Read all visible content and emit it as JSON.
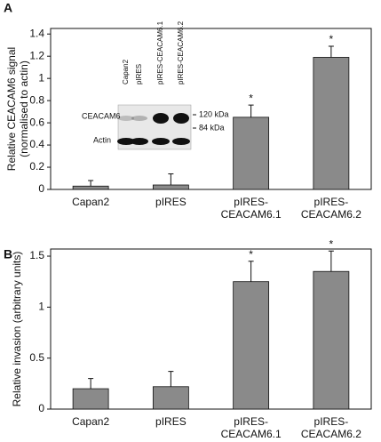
{
  "chart_data": [
    {
      "type": "bar",
      "panel": "A",
      "ylabel": [
        "Relative CEACAM6 signal",
        "(normalised to actin)"
      ],
      "categories": [
        "Capan2",
        "pIRES",
        "pIRES-CEACAM6.1",
        "pIRES-CEACAM6.2"
      ],
      "values": [
        0.03,
        0.04,
        0.65,
        1.19
      ],
      "errors": [
        0.05,
        0.1,
        0.11,
        0.1
      ],
      "markers": [
        null,
        null,
        "*",
        "*"
      ],
      "color": "#8a8a8a",
      "ylim": [
        0,
        1.45
      ],
      "yticks": [
        0,
        0.2,
        0.4,
        0.6,
        0.8,
        1,
        1.2,
        1.4
      ],
      "inset": {
        "lanes": [
          "Capan2",
          "pIRES",
          "pIRES-CEACAM6.1",
          "pIRES-CEACAM6.2"
        ],
        "rows": [
          "CEACAM6",
          "Actin"
        ],
        "markers": [
          "120 kDa",
          "84 kDa"
        ]
      }
    },
    {
      "type": "bar",
      "panel": "B",
      "ylabel": [
        "Relative invasion (arbitrary units)"
      ],
      "categories": [
        "Capan2",
        "pIRES",
        "pIRES-CEACAM6.1",
        "pIRES-CEACAM6.2"
      ],
      "values": [
        0.2,
        0.22,
        1.25,
        1.35
      ],
      "errors": [
        0.1,
        0.15,
        0.2,
        0.2
      ],
      "markers": [
        null,
        null,
        "*",
        "*"
      ],
      "color": "#8a8a8a",
      "ylim": [
        0,
        1.57
      ],
      "yticks": [
        0,
        0.5,
        1,
        1.5
      ]
    }
  ]
}
